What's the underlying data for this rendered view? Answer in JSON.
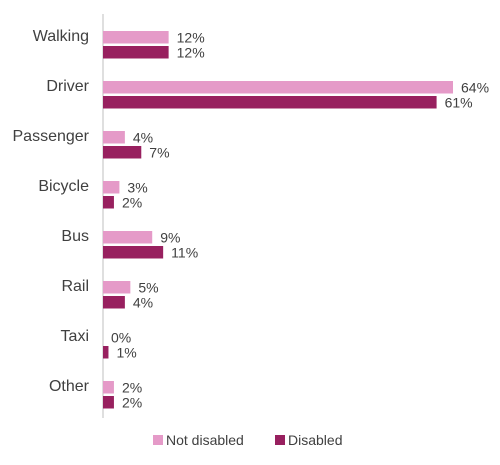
{
  "chart_data": {
    "type": "bar",
    "orientation": "horizontal",
    "categories": [
      "Walking",
      "Driver",
      "Passenger",
      "Bicycle",
      "Bus",
      "Rail",
      "Taxi",
      "Other"
    ],
    "series": [
      {
        "name": "Not disabled",
        "color": "#e59ac8",
        "values": [
          12,
          64,
          4,
          3,
          9,
          5,
          0,
          2
        ],
        "labels": [
          "12%",
          "64%",
          "4%",
          "3%",
          "9%",
          "5%",
          "0%",
          "2%"
        ]
      },
      {
        "name": "Disabled",
        "color": "#98205f",
        "values": [
          12,
          61,
          7,
          2,
          11,
          4,
          1,
          2
        ],
        "labels": [
          "12%",
          "61%",
          "7%",
          "2%",
          "11%",
          "4%",
          "1%",
          "2%"
        ]
      }
    ],
    "unit": "%",
    "xlim": [
      0,
      64
    ],
    "grid": false,
    "legend_position": "bottom"
  }
}
